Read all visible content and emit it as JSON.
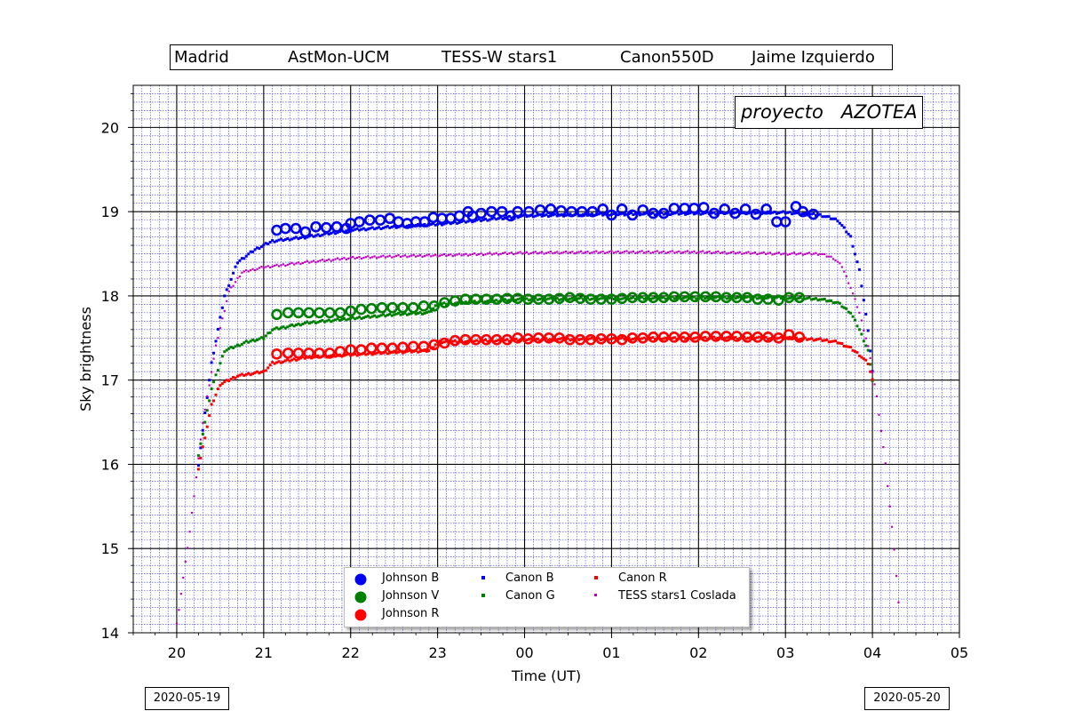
{
  "header": {
    "items": [
      "Madrid",
      "AstMon-UCM",
      "TESS-W stars1",
      "Canon550D",
      "Jaime Izquierdo"
    ]
  },
  "badge": "proyecto   AZOTEA",
  "dates": {
    "left": "2020-05-19",
    "right": "2020-05-20"
  },
  "chart_data": {
    "type": "scatter",
    "xlabel": "Time (UT)",
    "ylabel": "Sky brightness",
    "xlim": [
      19.5,
      29.0
    ],
    "ylim": [
      14.0,
      20.5
    ],
    "x_ticks": [
      20,
      21,
      22,
      23,
      24,
      25,
      26,
      27,
      28,
      29
    ],
    "x_tick_labels": [
      "20",
      "21",
      "22",
      "23",
      "00",
      "01",
      "02",
      "03",
      "04",
      "05"
    ],
    "y_ticks": [
      14,
      15,
      16,
      17,
      18,
      19,
      20
    ],
    "y_tick_labels": [
      "14",
      "15",
      "16",
      "17",
      "18",
      "19",
      "20"
    ],
    "grid": true,
    "legend_position": "bottom-center",
    "series": [
      {
        "name": "Johnson B",
        "marker": "open-circle",
        "color": "#0000ee",
        "x": [
          21.15,
          21.25,
          21.37,
          21.48,
          21.6,
          21.72,
          21.84,
          21.95,
          22.0,
          22.1,
          22.22,
          22.34,
          22.45,
          22.55,
          22.65,
          22.75,
          22.85,
          22.95,
          23.05,
          23.15,
          23.25,
          23.35,
          23.4,
          23.5,
          23.62,
          23.74,
          23.84,
          23.92,
          24.05,
          24.18,
          24.3,
          24.42,
          24.54,
          24.66,
          24.78,
          24.9,
          25.0,
          25.12,
          25.24,
          25.36,
          25.48,
          25.6,
          25.72,
          25.84,
          25.95,
          26.06,
          26.18,
          26.3,
          26.42,
          26.54,
          26.66,
          26.78,
          26.9,
          27.0,
          27.12
        ],
        "y": [
          18.78,
          18.8,
          18.8,
          18.76,
          18.82,
          18.81,
          18.82,
          18.8,
          18.86,
          18.88,
          18.9,
          18.9,
          18.92,
          18.88,
          18.86,
          18.88,
          18.88,
          18.93,
          18.92,
          18.92,
          18.95,
          19.0,
          18.95,
          18.98,
          19.0,
          19.0,
          18.95,
          19.0,
          19.0,
          19.02,
          19.03,
          19.01,
          19.0,
          19.0,
          19.0,
          19.03,
          18.96,
          19.03,
          18.96,
          19.02,
          18.98,
          18.98,
          19.04,
          19.04,
          19.04,
          19.05,
          18.98,
          19.03,
          18.98,
          19.03,
          18.97,
          19.03,
          18.88,
          18.88,
          19.06
        ],
        "x2": [
          27.2,
          27.32
        ],
        "y2": [
          19.0,
          18.97
        ]
      },
      {
        "name": "Johnson V",
        "marker": "open-circle",
        "color": "#008000",
        "x": [
          21.15,
          21.28,
          21.4,
          21.52,
          21.64,
          21.76,
          21.88,
          22.0,
          22.12,
          22.24,
          22.36,
          22.48,
          22.6,
          22.72,
          22.84,
          22.96,
          23.08,
          23.2,
          23.32,
          23.44,
          23.56,
          23.68,
          23.8,
          23.92,
          24.04,
          24.16,
          24.28,
          24.4,
          24.52,
          24.64,
          24.76,
          24.88,
          25.0,
          25.12,
          25.24,
          25.36,
          25.48,
          25.6,
          25.72,
          25.84,
          25.96,
          26.08,
          26.2,
          26.32,
          26.44,
          26.56,
          26.68,
          26.8,
          26.92,
          27.04,
          27.16
        ],
        "y": [
          17.78,
          17.8,
          17.8,
          17.8,
          17.8,
          17.8,
          17.8,
          17.82,
          17.84,
          17.85,
          17.86,
          17.86,
          17.86,
          17.86,
          17.88,
          17.88,
          17.92,
          17.94,
          17.96,
          17.96,
          17.96,
          17.96,
          17.97,
          17.97,
          17.96,
          17.96,
          17.96,
          17.97,
          17.98,
          17.97,
          17.96,
          17.96,
          17.96,
          17.97,
          17.98,
          17.98,
          17.98,
          17.98,
          17.99,
          17.99,
          17.99,
          17.99,
          17.99,
          17.98,
          17.98,
          17.98,
          17.96,
          17.96,
          17.95,
          17.98,
          17.98
        ]
      },
      {
        "name": "Johnson R",
        "marker": "open-circle",
        "color": "#ff0000",
        "x": [
          21.15,
          21.28,
          21.4,
          21.52,
          21.64,
          21.76,
          21.88,
          22.0,
          22.12,
          22.24,
          22.36,
          22.48,
          22.6,
          22.72,
          22.84,
          22.96,
          23.08,
          23.2,
          23.32,
          23.44,
          23.56,
          23.68,
          23.8,
          23.92,
          24.04,
          24.16,
          24.28,
          24.4,
          24.52,
          24.64,
          24.76,
          24.88,
          25.0,
          25.12,
          25.24,
          25.36,
          25.48,
          25.6,
          25.72,
          25.84,
          25.96,
          26.08,
          26.2,
          26.32,
          26.44,
          26.56,
          26.68,
          26.8,
          26.92,
          27.04,
          27.16
        ],
        "y": [
          17.31,
          17.32,
          17.32,
          17.32,
          17.32,
          17.32,
          17.34,
          17.36,
          17.36,
          17.38,
          17.38,
          17.38,
          17.39,
          17.4,
          17.4,
          17.42,
          17.44,
          17.47,
          17.48,
          17.48,
          17.48,
          17.48,
          17.48,
          17.5,
          17.49,
          17.5,
          17.5,
          17.5,
          17.48,
          17.48,
          17.48,
          17.49,
          17.49,
          17.48,
          17.5,
          17.5,
          17.51,
          17.51,
          17.51,
          17.51,
          17.51,
          17.52,
          17.52,
          17.52,
          17.52,
          17.51,
          17.51,
          17.51,
          17.5,
          17.54,
          17.51
        ]
      },
      {
        "name": "Canon B",
        "marker": "dot",
        "color": "#0000ee",
        "plateau": [
          [
            20.25,
            16.0
          ],
          [
            20.4,
            17.2
          ],
          [
            20.55,
            18.0
          ],
          [
            20.7,
            18.4
          ],
          [
            20.9,
            18.55
          ],
          [
            21.1,
            18.65
          ],
          [
            21.5,
            18.7
          ],
          [
            22.0,
            18.78
          ],
          [
            22.5,
            18.82
          ],
          [
            23.0,
            18.85
          ],
          [
            23.5,
            18.9
          ],
          [
            24.0,
            18.95
          ],
          [
            25.0,
            18.97
          ],
          [
            26.0,
            18.98
          ],
          [
            27.0,
            18.99
          ],
          [
            27.4,
            18.96
          ],
          [
            27.6,
            18.9
          ],
          [
            27.75,
            18.7
          ],
          [
            27.85,
            18.3
          ],
          [
            27.95,
            17.6
          ],
          [
            28.0,
            17.1
          ]
        ]
      },
      {
        "name": "Canon G",
        "marker": "dot",
        "color": "#008000",
        "plateau": [
          [
            20.25,
            16.1
          ],
          [
            20.4,
            16.9
          ],
          [
            20.55,
            17.35
          ],
          [
            20.8,
            17.45
          ],
          [
            21.0,
            17.5
          ],
          [
            21.1,
            17.6
          ],
          [
            21.5,
            17.68
          ],
          [
            22.0,
            17.73
          ],
          [
            22.5,
            17.78
          ],
          [
            22.9,
            17.8
          ],
          [
            23.0,
            17.9
          ],
          [
            24.0,
            17.96
          ],
          [
            25.0,
            17.97
          ],
          [
            26.0,
            17.98
          ],
          [
            27.0,
            17.98
          ],
          [
            27.4,
            17.96
          ],
          [
            27.6,
            17.92
          ],
          [
            27.75,
            17.8
          ],
          [
            27.85,
            17.6
          ],
          [
            27.95,
            17.35
          ],
          [
            28.0,
            17.0
          ]
        ]
      },
      {
        "name": "Canon R",
        "marker": "dot",
        "color": "#ff0000",
        "plateau": [
          [
            20.25,
            15.95
          ],
          [
            20.4,
            16.7
          ],
          [
            20.5,
            16.95
          ],
          [
            20.7,
            17.05
          ],
          [
            21.0,
            17.1
          ],
          [
            21.1,
            17.2
          ],
          [
            21.5,
            17.27
          ],
          [
            22.0,
            17.3
          ],
          [
            22.5,
            17.33
          ],
          [
            22.9,
            17.35
          ],
          [
            23.0,
            17.45
          ],
          [
            24.0,
            17.48
          ],
          [
            25.0,
            17.49
          ],
          [
            26.0,
            17.5
          ],
          [
            27.0,
            17.5
          ],
          [
            27.4,
            17.48
          ],
          [
            27.6,
            17.45
          ],
          [
            27.75,
            17.38
          ],
          [
            27.85,
            17.3
          ],
          [
            27.95,
            17.2
          ],
          [
            28.0,
            17.0
          ]
        ]
      },
      {
        "name": "TESS stars1 Coslada",
        "marker": "dot",
        "color": "#c000c0",
        "plateau": [
          [
            20.0,
            14.1
          ],
          [
            20.15,
            15.2
          ],
          [
            20.3,
            16.5
          ],
          [
            20.45,
            17.4
          ],
          [
            20.6,
            18.05
          ],
          [
            20.75,
            18.28
          ],
          [
            21.0,
            18.34
          ],
          [
            21.5,
            18.4
          ],
          [
            22.0,
            18.45
          ],
          [
            22.5,
            18.47
          ],
          [
            23.0,
            18.48
          ],
          [
            24.0,
            18.51
          ],
          [
            25.0,
            18.52
          ],
          [
            26.0,
            18.52
          ],
          [
            27.0,
            18.5
          ],
          [
            27.4,
            18.5
          ],
          [
            27.55,
            18.45
          ],
          [
            27.65,
            18.35
          ],
          [
            27.75,
            18.1
          ],
          [
            27.85,
            17.8
          ],
          [
            27.95,
            17.4
          ],
          [
            28.05,
            16.8
          ],
          [
            28.15,
            16.0
          ],
          [
            28.25,
            15.0
          ],
          [
            28.32,
            14.1
          ]
        ]
      }
    ],
    "legend": {
      "entries": [
        "Johnson B",
        "Johnson V",
        "Johnson R",
        "Canon B",
        "Canon G",
        "Canon R",
        "TESS stars1 Coslada"
      ]
    }
  }
}
